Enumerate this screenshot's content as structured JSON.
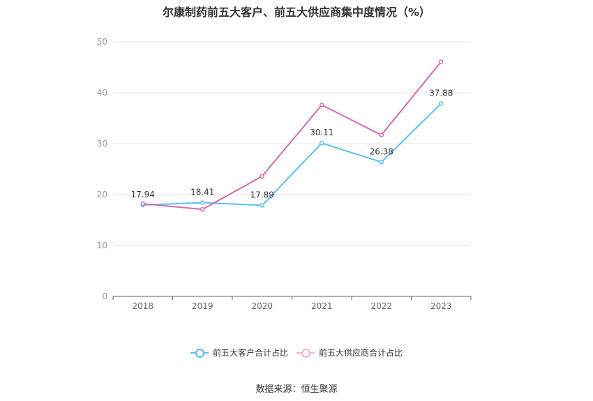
{
  "chart_data": {
    "type": "line",
    "title": "尔康制药前五大客户、前五大供应商集中度情况（%）",
    "categories": [
      "2018",
      "2019",
      "2020",
      "2021",
      "2022",
      "2023"
    ],
    "ylim": [
      0,
      50
    ],
    "yticks": [
      0,
      10,
      20,
      30,
      40,
      50
    ],
    "grid": true,
    "legend_position": "bottom",
    "series": [
      {
        "name": "前五大客户合计占比",
        "color": "#5bc0f0",
        "values": [
          17.94,
          18.41,
          17.89,
          30.11,
          26.38,
          37.88
        ],
        "labels": [
          "17.94",
          "18.41",
          "17.89",
          "30.11",
          "26.38",
          "37.88"
        ]
      },
      {
        "name": "前五大供应商合计占比",
        "color": "#d36cad",
        "values": [
          18.2,
          17.1,
          23.6,
          37.6,
          31.7,
          46.1
        ]
      }
    ]
  },
  "source": "数据来源：恒生聚源"
}
